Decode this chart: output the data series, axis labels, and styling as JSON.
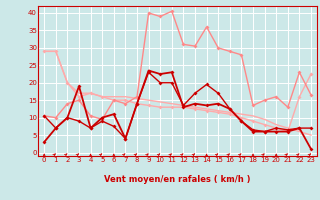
{
  "title": "",
  "xlabel": "Vent moyen/en rafales ( km/h )",
  "xlim": [
    -0.5,
    23.5
  ],
  "ylim": [
    -1,
    42
  ],
  "yticks": [
    0,
    5,
    10,
    15,
    20,
    25,
    30,
    35,
    40
  ],
  "xticks": [
    0,
    1,
    2,
    3,
    4,
    5,
    6,
    7,
    8,
    9,
    10,
    11,
    12,
    13,
    14,
    15,
    16,
    17,
    18,
    19,
    20,
    21,
    22,
    23
  ],
  "background_color": "#cce8e8",
  "grid_color": "#ffffff",
  "series": [
    {
      "x": [
        0,
        1,
        2,
        3,
        4,
        5,
        6,
        7,
        8,
        9,
        10,
        11,
        12,
        13,
        14,
        15,
        16,
        17,
        18,
        19,
        20,
        21,
        22,
        23
      ],
      "y": [
        29,
        29,
        20,
        17,
        17,
        16,
        16,
        16,
        15.5,
        15,
        14.5,
        14,
        13.5,
        13,
        12.5,
        12,
        11.5,
        11,
        10.5,
        9.5,
        8,
        7,
        6,
        5
      ],
      "color": "#ffaaaa",
      "lw": 1.0,
      "marker": null,
      "ms": 0
    },
    {
      "x": [
        0,
        1,
        2,
        3,
        4,
        5,
        6,
        7,
        8,
        9,
        10,
        11,
        12,
        13,
        14,
        15,
        16,
        17,
        18,
        19,
        20,
        21,
        22,
        23
      ],
      "y": [
        29,
        29,
        20,
        16,
        17,
        16,
        15,
        15,
        14,
        13.5,
        13,
        13,
        13,
        12.5,
        12,
        11.5,
        11,
        10,
        9,
        8,
        7,
        6,
        16,
        22.5
      ],
      "color": "#ffaaaa",
      "lw": 1.0,
      "marker": "D",
      "ms": 2.0
    },
    {
      "x": [
        0,
        1,
        2,
        3,
        4,
        5,
        6,
        7,
        8,
        9,
        10,
        11,
        12,
        13,
        14,
        15,
        16,
        17,
        18,
        19,
        20,
        21,
        22,
        23
      ],
      "y": [
        10.5,
        10,
        14,
        15,
        10.5,
        9.5,
        15,
        14,
        16,
        40,
        39,
        40.5,
        31,
        30.5,
        36,
        30,
        29,
        28,
        13.5,
        15,
        16,
        13,
        23,
        16.5
      ],
      "color": "#ff8888",
      "lw": 1.0,
      "marker": "D",
      "ms": 2.0
    },
    {
      "x": [
        0,
        1,
        2,
        3,
        4,
        5,
        6,
        7,
        8,
        9,
        10,
        11,
        12,
        13,
        14,
        15,
        16,
        17,
        18,
        19,
        20,
        21,
        22,
        23
      ],
      "y": [
        10.5,
        7,
        10,
        9,
        7,
        9,
        7.5,
        4,
        14,
        23,
        20,
        20,
        13.5,
        17,
        19.5,
        17,
        12.5,
        9,
        6.5,
        6,
        7,
        6.5,
        7,
        7
      ],
      "color": "#cc0000",
      "lw": 1.0,
      "marker": "D",
      "ms": 2.0
    },
    {
      "x": [
        0,
        1,
        2,
        3,
        4,
        5,
        6,
        7,
        8,
        9,
        10,
        11,
        12,
        13,
        14,
        15,
        16,
        17,
        18,
        19,
        20,
        21,
        22,
        23
      ],
      "y": [
        3,
        7,
        10,
        19,
        7,
        10,
        11,
        4,
        14,
        23.5,
        22.5,
        23,
        13,
        14,
        13.5,
        14,
        12.5,
        9,
        6,
        6,
        6,
        6,
        7,
        1
      ],
      "color": "#cc0000",
      "lw": 1.3,
      "marker": "D",
      "ms": 2.0
    }
  ],
  "wind_arrows": [
    {
      "x": 0,
      "up": false
    },
    {
      "x": 1,
      "up": true
    },
    {
      "x": 2,
      "up": true
    },
    {
      "x": 3,
      "up": true
    },
    {
      "x": 4,
      "up": false
    },
    {
      "x": 5,
      "up": true
    },
    {
      "x": 6,
      "up": false
    },
    {
      "x": 7,
      "up": true
    },
    {
      "x": 8,
      "up": true
    },
    {
      "x": 9,
      "up": true
    },
    {
      "x": 10,
      "up": true
    },
    {
      "x": 11,
      "up": true
    },
    {
      "x": 12,
      "up": true
    },
    {
      "x": 13,
      "up": true
    },
    {
      "x": 14,
      "up": false
    },
    {
      "x": 15,
      "up": true
    },
    {
      "x": 16,
      "up": true
    },
    {
      "x": 17,
      "up": true
    },
    {
      "x": 18,
      "up": false
    },
    {
      "x": 19,
      "up": true
    },
    {
      "x": 20,
      "up": false
    },
    {
      "x": 21,
      "up": true
    },
    {
      "x": 22,
      "up": true
    },
    {
      "x": 23,
      "up": true
    }
  ]
}
